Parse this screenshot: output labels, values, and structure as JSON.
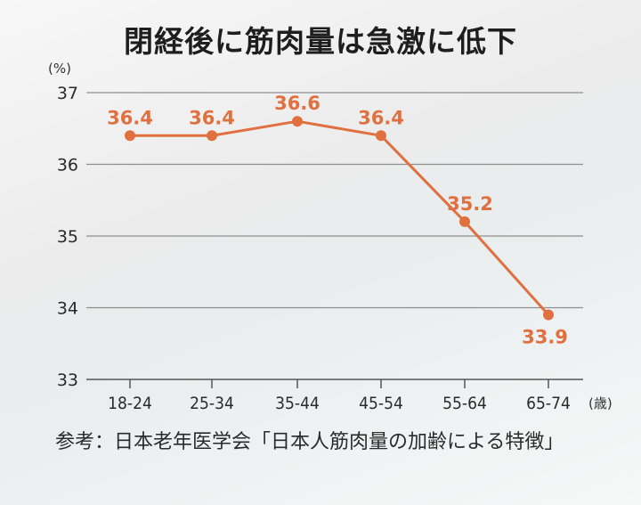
{
  "chart_data": {
    "type": "line",
    "title": "閉経後に筋肉量は急激に低下",
    "y_unit": "(%)",
    "x_unit": "(歳)",
    "categories": [
      "18-24",
      "25-34",
      "35-44",
      "45-54",
      "55-64",
      "65-74"
    ],
    "series": [
      {
        "values": [
          36.4,
          36.4,
          36.6,
          36.4,
          35.2,
          33.9
        ]
      }
    ],
    "data_labels": [
      "36.4",
      "36.4",
      "36.6",
      "36.4",
      "35.2",
      "33.9"
    ],
    "ylim": [
      33,
      37
    ],
    "yticks": [
      33,
      34,
      35,
      36,
      37
    ],
    "grid": true,
    "line_color": "#e0703f",
    "source": "参考：日本老年医学会「日本人筋肉量の加齢による特徴」"
  }
}
